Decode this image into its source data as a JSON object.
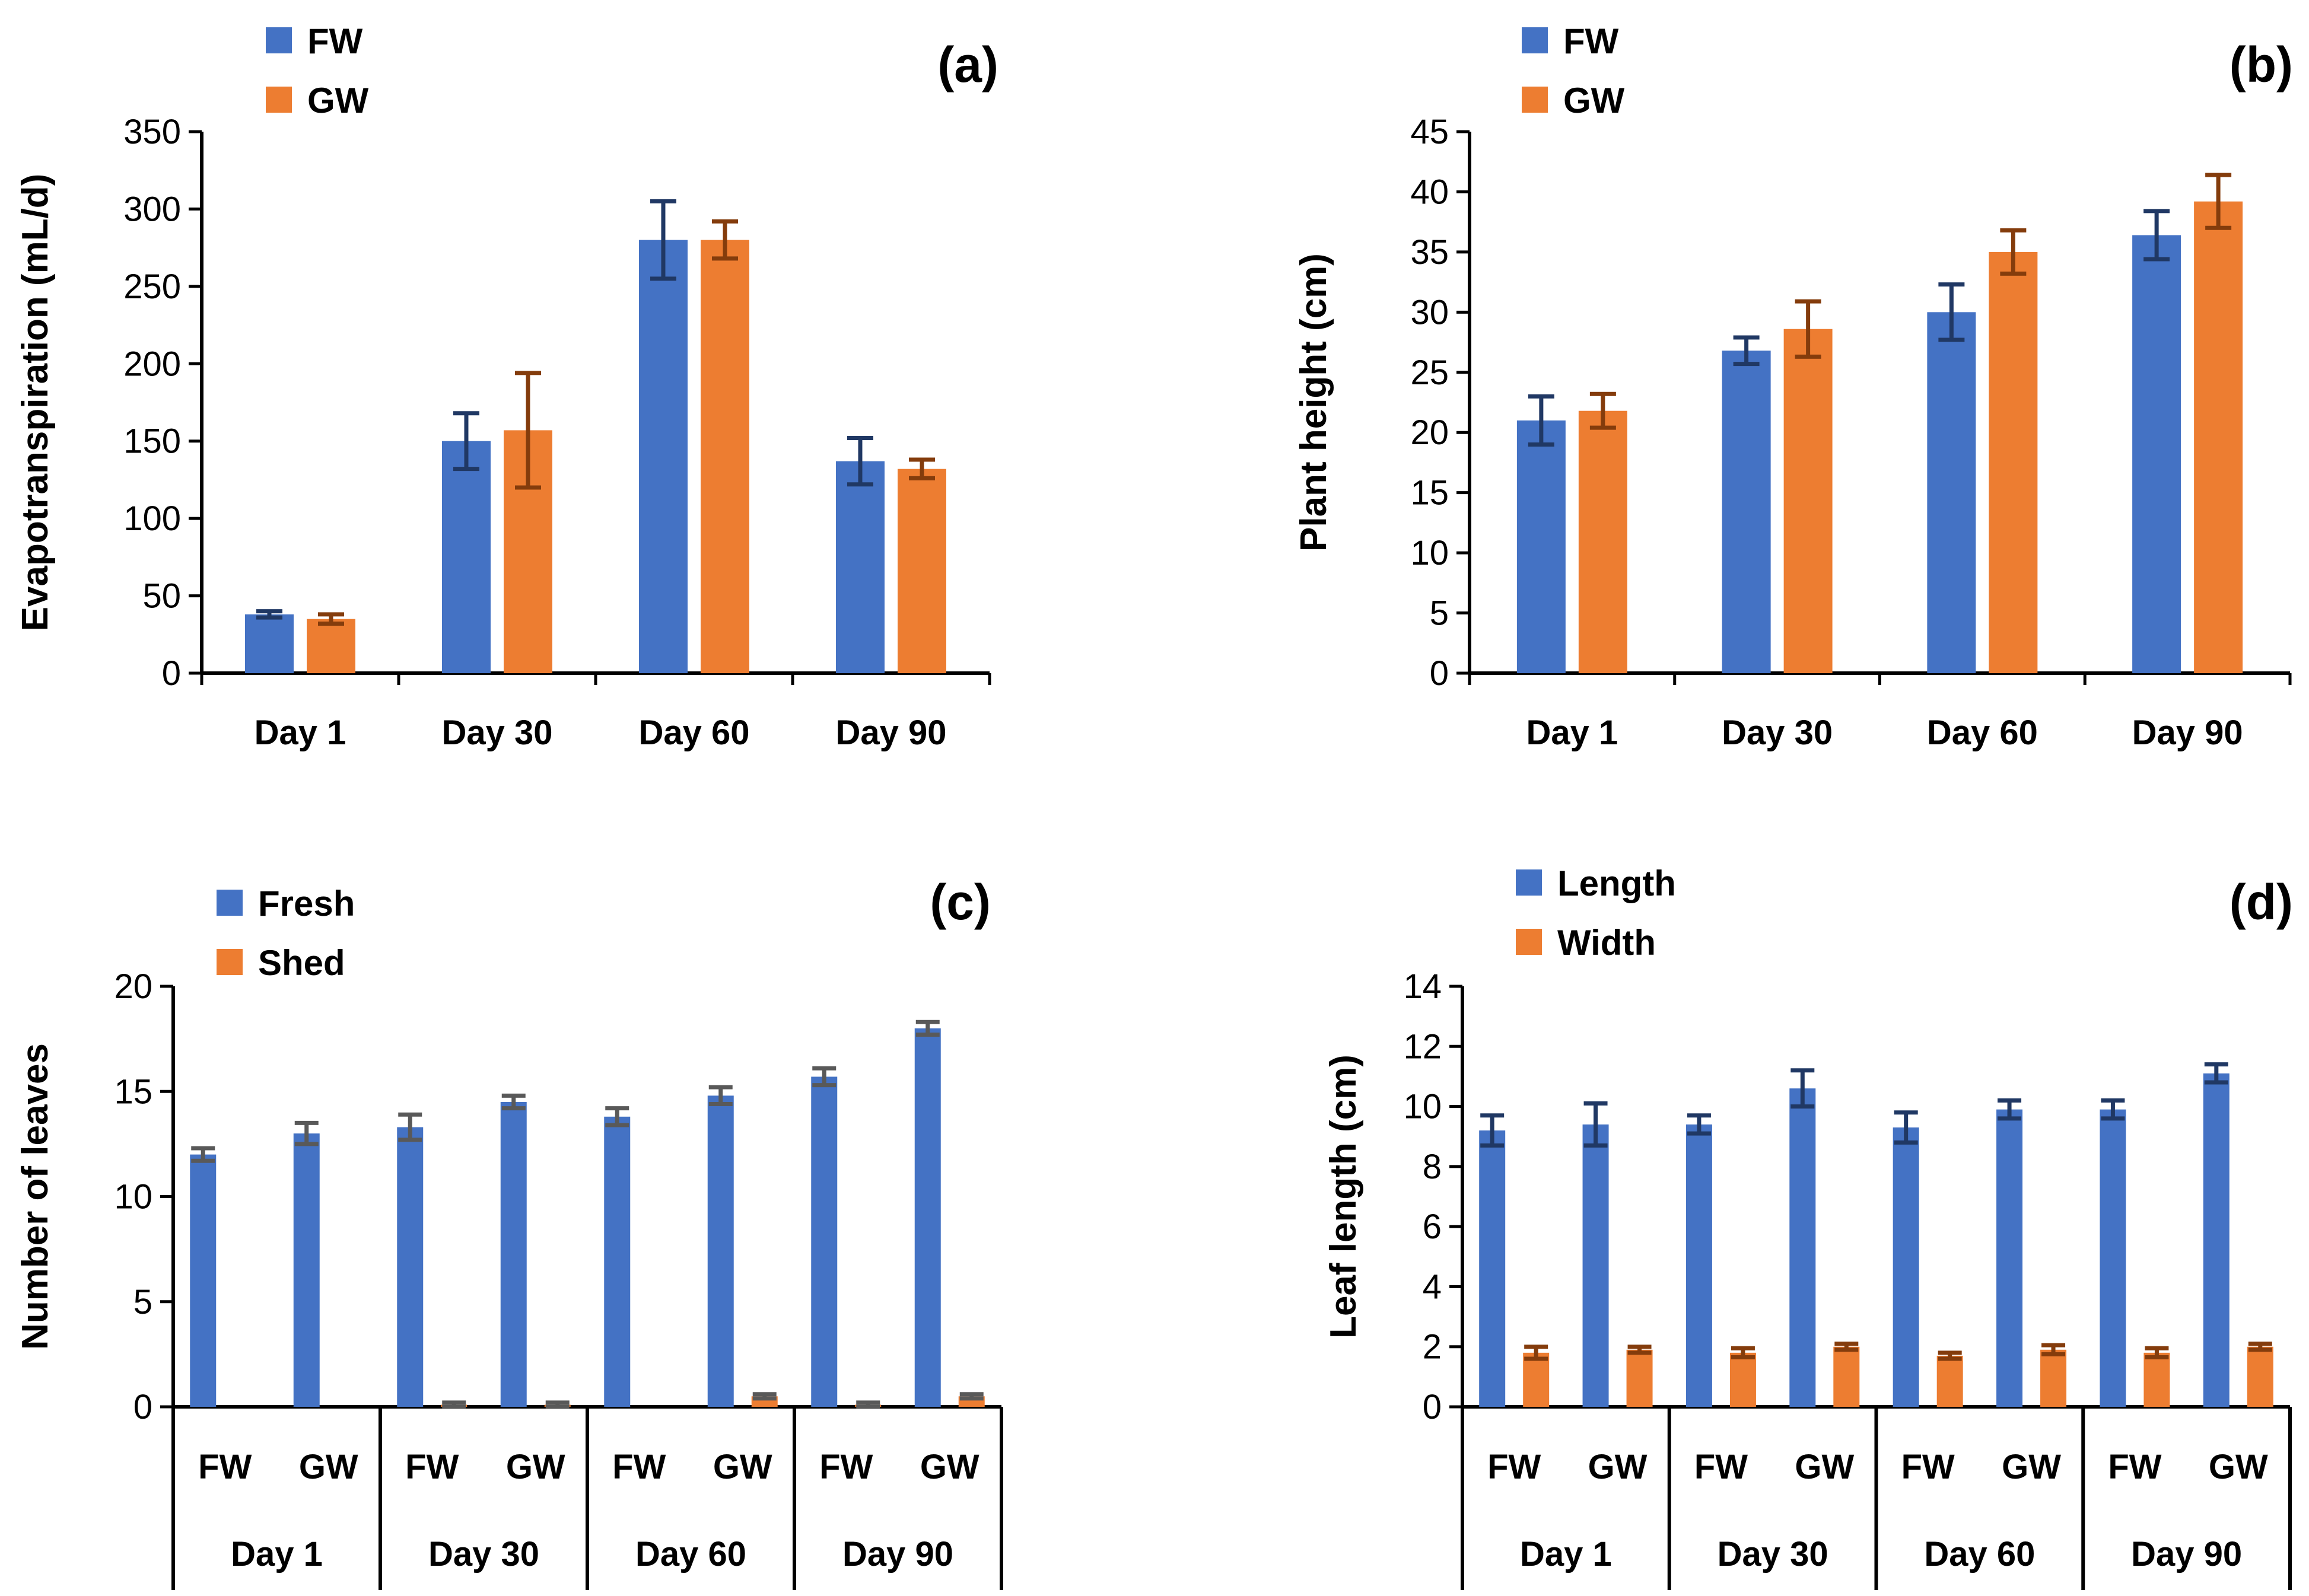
{
  "chart_data": [
    {
      "panel": "(a)",
      "type": "bar",
      "ylabel": "Evapotranspiration  (mL/d)",
      "ylim": [
        0,
        350
      ],
      "yticks": [
        0,
        50,
        100,
        150,
        200,
        250,
        300,
        350
      ],
      "categories": [
        "Day 1",
        "Day 30",
        "Day 60",
        "Day 90"
      ],
      "legend_position": "top-left",
      "series": [
        {
          "name": "FW",
          "color": "#4472C4",
          "errcolor": "#203864",
          "values": [
            38,
            150,
            280,
            137
          ],
          "errors": [
            2,
            18,
            25,
            15
          ]
        },
        {
          "name": "GW",
          "color": "#ED7D31",
          "errcolor": "#843C0C",
          "values": [
            35,
            157,
            280,
            132
          ],
          "errors": [
            3,
            37,
            12,
            6
          ]
        }
      ]
    },
    {
      "panel": "(b)",
      "type": "bar",
      "ylabel": "Plant height (cm)",
      "ylim": [
        0,
        45
      ],
      "yticks": [
        0,
        5,
        10,
        15,
        20,
        25,
        30,
        35,
        40,
        45
      ],
      "categories": [
        "Day 1",
        "Day 30",
        "Day 60",
        "Day 90"
      ],
      "legend_position": "top-left",
      "series": [
        {
          "name": "FW",
          "color": "#4472C4",
          "errcolor": "#203864",
          "values": [
            21,
            26.8,
            30,
            36.4
          ],
          "errors": [
            2.0,
            1.1,
            2.3,
            2.0
          ]
        },
        {
          "name": "GW",
          "color": "#ED7D31",
          "errcolor": "#843C0C",
          "values": [
            21.8,
            28.6,
            35,
            39.2
          ],
          "errors": [
            1.4,
            2.3,
            1.8,
            2.2
          ]
        }
      ]
    },
    {
      "panel": "(c)",
      "type": "bar",
      "ylabel": "Number of leaves",
      "ylim": [
        0,
        20
      ],
      "yticks": [
        0,
        5,
        10,
        15,
        20
      ],
      "categories": [
        "FW",
        "GW",
        "FW",
        "GW",
        "FW",
        "GW",
        "FW",
        "GW"
      ],
      "groups": [
        "Day 1",
        "Day 30",
        "Day 60",
        "Day 90"
      ],
      "legend_position": "top-left",
      "series": [
        {
          "name": "Fresh",
          "color": "#4472C4",
          "errcolor": "#595959",
          "values": [
            12,
            13,
            13.3,
            14.5,
            13.8,
            14.8,
            15.7,
            18
          ],
          "errors": [
            0.3,
            0.5,
            0.6,
            0.3,
            0.4,
            0.4,
            0.4,
            0.3
          ]
        },
        {
          "name": "Shed",
          "color": "#ED7D31",
          "errcolor": "#595959",
          "values": [
            0,
            0,
            0.1,
            0.1,
            0,
            0.5,
            0.1,
            0.5
          ],
          "errors": [
            0,
            0,
            0.1,
            0.1,
            0,
            0.1,
            0.1,
            0.1
          ]
        }
      ]
    },
    {
      "panel": "(d)",
      "type": "bar",
      "ylabel": "Leaf length (cm)",
      "ylim": [
        0,
        14
      ],
      "yticks": [
        0,
        2,
        4,
        6,
        8,
        10,
        12,
        14
      ],
      "categories": [
        "FW",
        "GW",
        "FW",
        "GW",
        "FW",
        "GW",
        "FW",
        "GW"
      ],
      "groups": [
        "Day 1",
        "Day 30",
        "Day 60",
        "Day 90"
      ],
      "legend_position": "top-left",
      "series": [
        {
          "name": "Length",
          "color": "#4472C4",
          "errcolor": "#203864",
          "values": [
            9.2,
            9.4,
            9.4,
            10.6,
            9.3,
            9.9,
            9.9,
            11.1
          ],
          "errors": [
            0.5,
            0.7,
            0.3,
            0.6,
            0.5,
            0.3,
            0.3,
            0.3
          ]
        },
        {
          "name": "Width",
          "color": "#ED7D31",
          "errcolor": "#843C0C",
          "values": [
            1.8,
            1.9,
            1.8,
            2.0,
            1.7,
            1.9,
            1.8,
            2.0
          ],
          "errors": [
            0.2,
            0.1,
            0.15,
            0.1,
            0.1,
            0.15,
            0.15,
            0.1
          ]
        }
      ]
    }
  ]
}
